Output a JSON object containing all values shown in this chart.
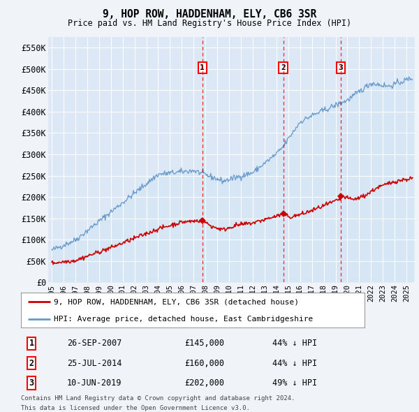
{
  "title": "9, HOP ROW, HADDENHAM, ELY, CB6 3SR",
  "subtitle": "Price paid vs. HM Land Registry's House Price Index (HPI)",
  "background_color": "#f0f4f8",
  "plot_bg_color": "#dce8f5",
  "ylim": [
    0,
    575000
  ],
  "yticks": [
    0,
    50000,
    100000,
    150000,
    200000,
    250000,
    300000,
    350000,
    400000,
    450000,
    500000,
    550000
  ],
  "ytick_labels": [
    "£0",
    "£50K",
    "£100K",
    "£150K",
    "£200K",
    "£250K",
    "£300K",
    "£350K",
    "£400K",
    "£450K",
    "£500K",
    "£550K"
  ],
  "sale1": {
    "date_num": 2007.74,
    "price": 145000,
    "label": "1",
    "date_str": "26-SEP-2007",
    "price_str": "£145,000",
    "pct": "44% ↓ HPI"
  },
  "sale2": {
    "date_num": 2014.57,
    "price": 160000,
    "label": "2",
    "date_str": "25-JUL-2014",
    "price_str": "£160,000",
    "pct": "44% ↓ HPI"
  },
  "sale3": {
    "date_num": 2019.44,
    "price": 202000,
    "label": "3",
    "date_str": "10-JUN-2019",
    "price_str": "£202,000",
    "pct": "49% ↓ HPI"
  },
  "red_line_color": "#cc0000",
  "blue_line_color": "#6699cc",
  "blue_fill_color": "#d0e4f4",
  "legend1": "9, HOP ROW, HADDENHAM, ELY, CB6 3SR (detached house)",
  "legend2": "HPI: Average price, detached house, East Cambridgeshire",
  "footer1": "Contains HM Land Registry data © Crown copyright and database right 2024.",
  "footer2": "This data is licensed under the Open Government Licence v3.0."
}
